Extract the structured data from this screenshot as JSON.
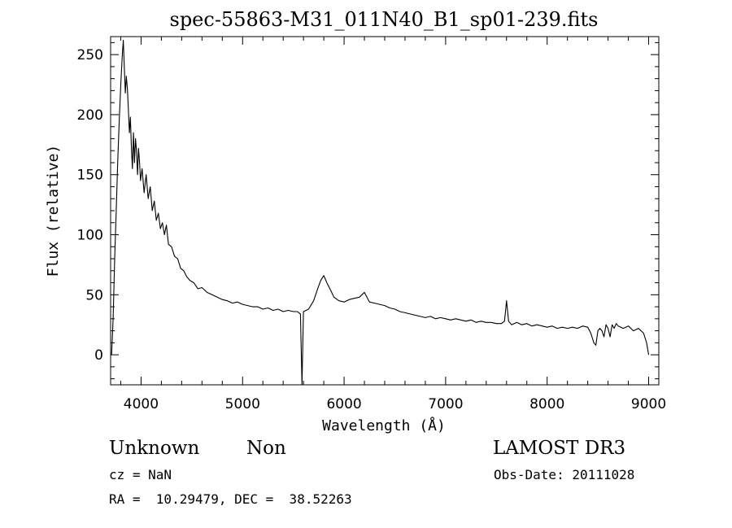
{
  "chart_data": {
    "type": "line",
    "title": "spec-55863-M31_011N40_B1_sp01-239.fits",
    "xlabel": "Wavelength (Å)",
    "ylabel": "Flux (relative)",
    "xlim": [
      3700,
      9100
    ],
    "ylim": [
      -25,
      265
    ],
    "xticks": [
      4000,
      5000,
      6000,
      7000,
      8000,
      9000
    ],
    "yticks": [
      0,
      50,
      100,
      150,
      200,
      250
    ],
    "grid": false,
    "legend": "none",
    "series": [
      {
        "points": [
          [
            3710,
            0
          ],
          [
            3725,
            30
          ],
          [
            3740,
            80
          ],
          [
            3755,
            120
          ],
          [
            3770,
            160
          ],
          [
            3785,
            195
          ],
          [
            3800,
            225
          ],
          [
            3815,
            250
          ],
          [
            3825,
            262
          ],
          [
            3835,
            240
          ],
          [
            3845,
            218
          ],
          [
            3855,
            232
          ],
          [
            3865,
            222
          ],
          [
            3875,
            205
          ],
          [
            3885,
            185
          ],
          [
            3895,
            198
          ],
          [
            3905,
            172
          ],
          [
            3915,
            155
          ],
          [
            3925,
            185
          ],
          [
            3935,
            160
          ],
          [
            3945,
            180
          ],
          [
            3955,
            170
          ],
          [
            3965,
            150
          ],
          [
            3975,
            172
          ],
          [
            3985,
            160
          ],
          [
            3995,
            145
          ],
          [
            4010,
            155
          ],
          [
            4030,
            135
          ],
          [
            4050,
            150
          ],
          [
            4070,
            130
          ],
          [
            4090,
            140
          ],
          [
            4110,
            120
          ],
          [
            4130,
            128
          ],
          [
            4150,
            112
          ],
          [
            4170,
            118
          ],
          [
            4190,
            105
          ],
          [
            4210,
            110
          ],
          [
            4230,
            100
          ],
          [
            4250,
            108
          ],
          [
            4270,
            92
          ],
          [
            4300,
            90
          ],
          [
            4330,
            82
          ],
          [
            4360,
            80
          ],
          [
            4390,
            72
          ],
          [
            4420,
            70
          ],
          [
            4450,
            65
          ],
          [
            4480,
            62
          ],
          [
            4520,
            60
          ],
          [
            4560,
            55
          ],
          [
            4600,
            56
          ],
          [
            4650,
            52
          ],
          [
            4700,
            50
          ],
          [
            4750,
            48
          ],
          [
            4800,
            46
          ],
          [
            4850,
            45
          ],
          [
            4900,
            43
          ],
          [
            4950,
            44
          ],
          [
            5000,
            42
          ],
          [
            5050,
            41
          ],
          [
            5100,
            40
          ],
          [
            5150,
            40
          ],
          [
            5200,
            38
          ],
          [
            5250,
            39
          ],
          [
            5300,
            37
          ],
          [
            5350,
            38
          ],
          [
            5400,
            36
          ],
          [
            5450,
            37
          ],
          [
            5500,
            36
          ],
          [
            5540,
            36
          ],
          [
            5570,
            34
          ],
          [
            5585,
            -25
          ],
          [
            5600,
            36
          ],
          [
            5650,
            38
          ],
          [
            5700,
            45
          ],
          [
            5740,
            55
          ],
          [
            5770,
            62
          ],
          [
            5800,
            66
          ],
          [
            5830,
            60
          ],
          [
            5860,
            55
          ],
          [
            5900,
            48
          ],
          [
            5950,
            45
          ],
          [
            6000,
            44
          ],
          [
            6050,
            46
          ],
          [
            6100,
            47
          ],
          [
            6150,
            48
          ],
          [
            6200,
            52
          ],
          [
            6250,
            44
          ],
          [
            6300,
            43
          ],
          [
            6350,
            42
          ],
          [
            6400,
            41
          ],
          [
            6450,
            39
          ],
          [
            6500,
            38
          ],
          [
            6550,
            36
          ],
          [
            6600,
            35
          ],
          [
            6650,
            34
          ],
          [
            6700,
            33
          ],
          [
            6750,
            32
          ],
          [
            6800,
            31
          ],
          [
            6850,
            32
          ],
          [
            6900,
            30
          ],
          [
            6950,
            31
          ],
          [
            7000,
            30
          ],
          [
            7050,
            29
          ],
          [
            7100,
            30
          ],
          [
            7150,
            29
          ],
          [
            7200,
            28
          ],
          [
            7250,
            29
          ],
          [
            7300,
            27
          ],
          [
            7350,
            28
          ],
          [
            7400,
            27
          ],
          [
            7450,
            27
          ],
          [
            7500,
            26
          ],
          [
            7550,
            26
          ],
          [
            7580,
            28
          ],
          [
            7600,
            45
          ],
          [
            7620,
            28
          ],
          [
            7650,
            25
          ],
          [
            7700,
            27
          ],
          [
            7750,
            25
          ],
          [
            7800,
            26
          ],
          [
            7850,
            24
          ],
          [
            7900,
            25
          ],
          [
            7950,
            24
          ],
          [
            8000,
            23
          ],
          [
            8050,
            24
          ],
          [
            8100,
            22
          ],
          [
            8150,
            23
          ],
          [
            8200,
            22
          ],
          [
            8250,
            23
          ],
          [
            8300,
            22
          ],
          [
            8350,
            24
          ],
          [
            8400,
            23
          ],
          [
            8430,
            18
          ],
          [
            8460,
            10
          ],
          [
            8480,
            8
          ],
          [
            8500,
            20
          ],
          [
            8520,
            22
          ],
          [
            8540,
            20
          ],
          [
            8560,
            15
          ],
          [
            8580,
            25
          ],
          [
            8600,
            22
          ],
          [
            8620,
            15
          ],
          [
            8640,
            25
          ],
          [
            8660,
            22
          ],
          [
            8680,
            26
          ],
          [
            8700,
            24
          ],
          [
            8750,
            22
          ],
          [
            8800,
            24
          ],
          [
            8850,
            20
          ],
          [
            8900,
            22
          ],
          [
            8950,
            18
          ],
          [
            8980,
            10
          ],
          [
            9000,
            0
          ]
        ]
      }
    ]
  },
  "info": {
    "object_class": "Unknown",
    "object_subclass": "Non",
    "survey": "LAMOST DR3",
    "redshift": "cz = NaN",
    "obs_date": "Obs-Date: 20111028",
    "coords": "RA =  10.29479, DEC =  38.52263"
  }
}
